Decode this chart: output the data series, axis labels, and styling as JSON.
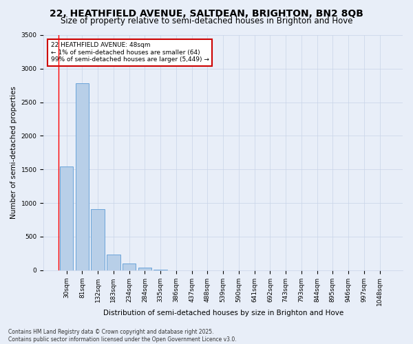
{
  "title": "22, HEATHFIELD AVENUE, SALTDEAN, BRIGHTON, BN2 8QB",
  "subtitle": "Size of property relative to semi-detached houses in Brighton and Hove",
  "xlabel": "Distribution of semi-detached houses by size in Brighton and Hove",
  "ylabel": "Number of semi-detached properties",
  "categories": [
    "30sqm",
    "81sqm",
    "132sqm",
    "183sqm",
    "234sqm",
    "284sqm",
    "335sqm",
    "386sqm",
    "437sqm",
    "488sqm",
    "539sqm",
    "590sqm",
    "641sqm",
    "692sqm",
    "743sqm",
    "793sqm",
    "844sqm",
    "895sqm",
    "946sqm",
    "997sqm",
    "1048sqm"
  ],
  "values": [
    1540,
    2780,
    910,
    235,
    95,
    38,
    12,
    0,
    0,
    0,
    0,
    0,
    0,
    0,
    0,
    0,
    0,
    0,
    0,
    0,
    0
  ],
  "bar_color": "#b8cfe8",
  "bar_edge_color": "#5b9bd5",
  "annotation_text": "22 HEATHFIELD AVENUE: 48sqm\n← 1% of semi-detached houses are smaller (64)\n99% of semi-detached houses are larger (5,449) →",
  "annotation_box_color": "#ffffff",
  "annotation_box_edge": "#cc0000",
  "footer": "Contains HM Land Registry data © Crown copyright and database right 2025.\nContains public sector information licensed under the Open Government Licence v3.0.",
  "background_color": "#e8eef8",
  "grid_color": "#c8d4e8",
  "title_fontsize": 10,
  "subtitle_fontsize": 8.5,
  "tick_fontsize": 6.5,
  "ylabel_fontsize": 7.5,
  "xlabel_fontsize": 7.5,
  "footer_fontsize": 5.5,
  "ylim_max": 3500,
  "yticks": [
    0,
    500,
    1000,
    1500,
    2000,
    2500,
    3000,
    3500
  ]
}
